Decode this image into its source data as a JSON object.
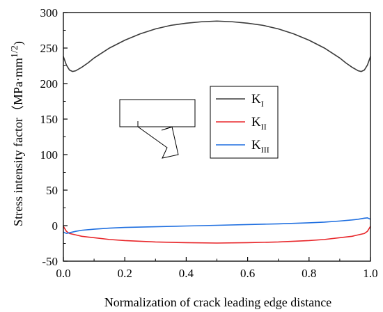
{
  "chart_data": {
    "type": "line",
    "xlabel": "Normalization of crack leading edge distance",
    "ylabel": "Stress intensity factor（MPa·mm",
    "ylabel_superscript": "1/2",
    "ylabel_close": ")",
    "xlim": [
      0.0,
      1.0
    ],
    "ylim": [
      -50,
      300
    ],
    "x_ticks": [
      0.0,
      0.2,
      0.4,
      0.6,
      0.8,
      1.0
    ],
    "x_tick_labels": [
      "0.0",
      "0.2",
      "0.4",
      "0.6",
      "0.8",
      "1.0"
    ],
    "y_ticks": [
      -50,
      0,
      50,
      100,
      150,
      200,
      250,
      300
    ],
    "y_tick_labels": [
      "-50",
      "0",
      "50",
      "100",
      "150",
      "200",
      "250",
      "300"
    ],
    "grid": false,
    "legend_position": "middle-right",
    "series": [
      {
        "name": "K",
        "subscript": "I",
        "color": "#3a3a3a",
        "x": [
          0.0,
          0.01,
          0.02,
          0.03,
          0.04,
          0.06,
          0.08,
          0.1,
          0.15,
          0.2,
          0.25,
          0.3,
          0.35,
          0.4,
          0.45,
          0.5,
          0.55,
          0.6,
          0.65,
          0.7,
          0.75,
          0.8,
          0.85,
          0.9,
          0.92,
          0.94,
          0.96,
          0.97,
          0.98,
          0.99,
          1.0
        ],
        "y": [
          238,
          226,
          219,
          217,
          218,
          223,
          229,
          236,
          250,
          261,
          270,
          277,
          282,
          285,
          287,
          288,
          287,
          285,
          282,
          277,
          270,
          261,
          250,
          236,
          229,
          223,
          218,
          217,
          219,
          226,
          238
        ]
      },
      {
        "name": "K",
        "subscript": "II",
        "color": "#e8262a",
        "x": [
          0.0,
          0.01,
          0.02,
          0.04,
          0.06,
          0.1,
          0.15,
          0.2,
          0.3,
          0.4,
          0.5,
          0.6,
          0.7,
          0.8,
          0.85,
          0.9,
          0.94,
          0.96,
          0.98,
          0.99,
          1.0
        ],
        "y": [
          -1,
          -8,
          -11,
          -13,
          -15,
          -17,
          -19.5,
          -21,
          -23,
          -24,
          -24.5,
          -24,
          -23,
          -21,
          -19.5,
          -17,
          -15,
          -13,
          -11,
          -8,
          -1
        ]
      },
      {
        "name": "K",
        "subscript": "III",
        "color": "#1f6fe0",
        "x": [
          0.0,
          0.01,
          0.02,
          0.04,
          0.06,
          0.1,
          0.15,
          0.2,
          0.3,
          0.4,
          0.5,
          0.6,
          0.7,
          0.8,
          0.85,
          0.9,
          0.94,
          0.96,
          0.98,
          0.99,
          1.0
        ],
        "y": [
          -9,
          -11,
          -10,
          -8,
          -6.5,
          -5,
          -3.5,
          -2.5,
          -1.5,
          -0.5,
          0.5,
          1.5,
          2.5,
          4,
          5,
          6.5,
          8,
          9,
          10.5,
          11,
          9
        ]
      }
    ]
  }
}
